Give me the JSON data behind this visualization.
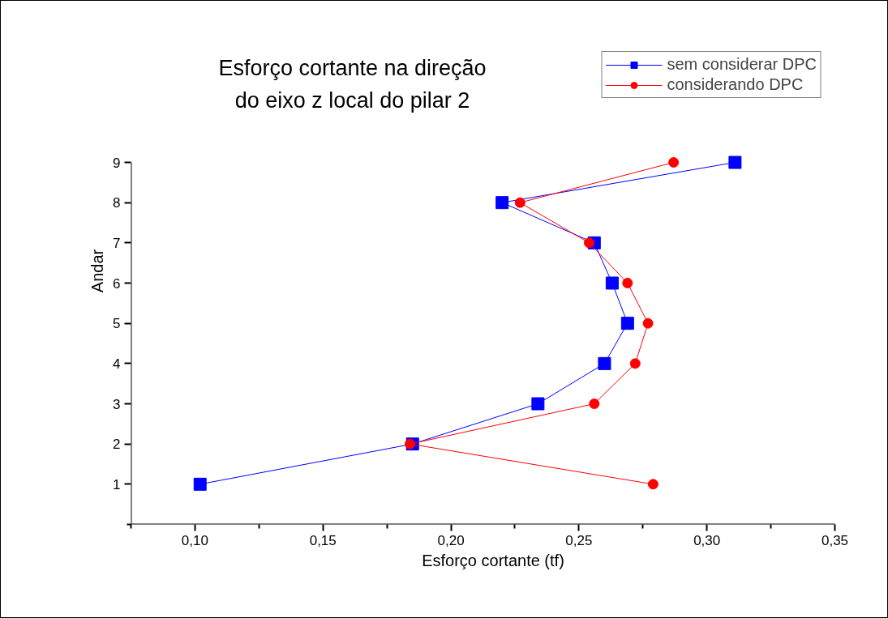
{
  "chart_data": {
    "type": "line",
    "title": "Esforço cortante na direção do eixo z local do pilar 2",
    "xlabel": "Esforço cortante (tf)",
    "ylabel": "Andar",
    "x": [
      1,
      2,
      3,
      4,
      5,
      6,
      7,
      8,
      9
    ],
    "orientation": "horizontal",
    "series": [
      {
        "name": "sem considerar DPC",
        "color": "#0000ff",
        "marker": "square",
        "values": [
          0.102,
          0.185,
          0.234,
          0.26,
          0.269,
          0.263,
          0.256,
          0.22,
          0.311
        ]
      },
      {
        "name": "considerando DPC",
        "color": "#ff0000",
        "marker": "circle",
        "values": [
          0.279,
          0.184,
          0.256,
          0.272,
          0.277,
          0.269,
          0.254,
          0.227,
          0.287
        ]
      }
    ],
    "xlim": [
      0.075,
      0.35
    ],
    "xticks": [
      {
        "value": 0.075,
        "label": null
      },
      {
        "value": 0.1,
        "label": "0,10"
      },
      {
        "value": 0.125,
        "label": null
      },
      {
        "value": 0.15,
        "label": "0,15"
      },
      {
        "value": 0.175,
        "label": null
      },
      {
        "value": 0.2,
        "label": "0,20"
      },
      {
        "value": 0.225,
        "label": null
      },
      {
        "value": 0.25,
        "label": "0,25"
      },
      {
        "value": 0.275,
        "label": null
      },
      {
        "value": 0.3,
        "label": "0,30"
      },
      {
        "value": 0.325,
        "label": null
      },
      {
        "value": 0.35,
        "label": "0,35"
      }
    ],
    "ylim": [
      0,
      9
    ],
    "yticks": [
      {
        "value": 0,
        "label": null
      },
      1,
      2,
      3,
      4,
      5,
      6,
      7,
      8,
      9
    ],
    "legend": "top right",
    "grid": false,
    "line_style": "solid"
  }
}
